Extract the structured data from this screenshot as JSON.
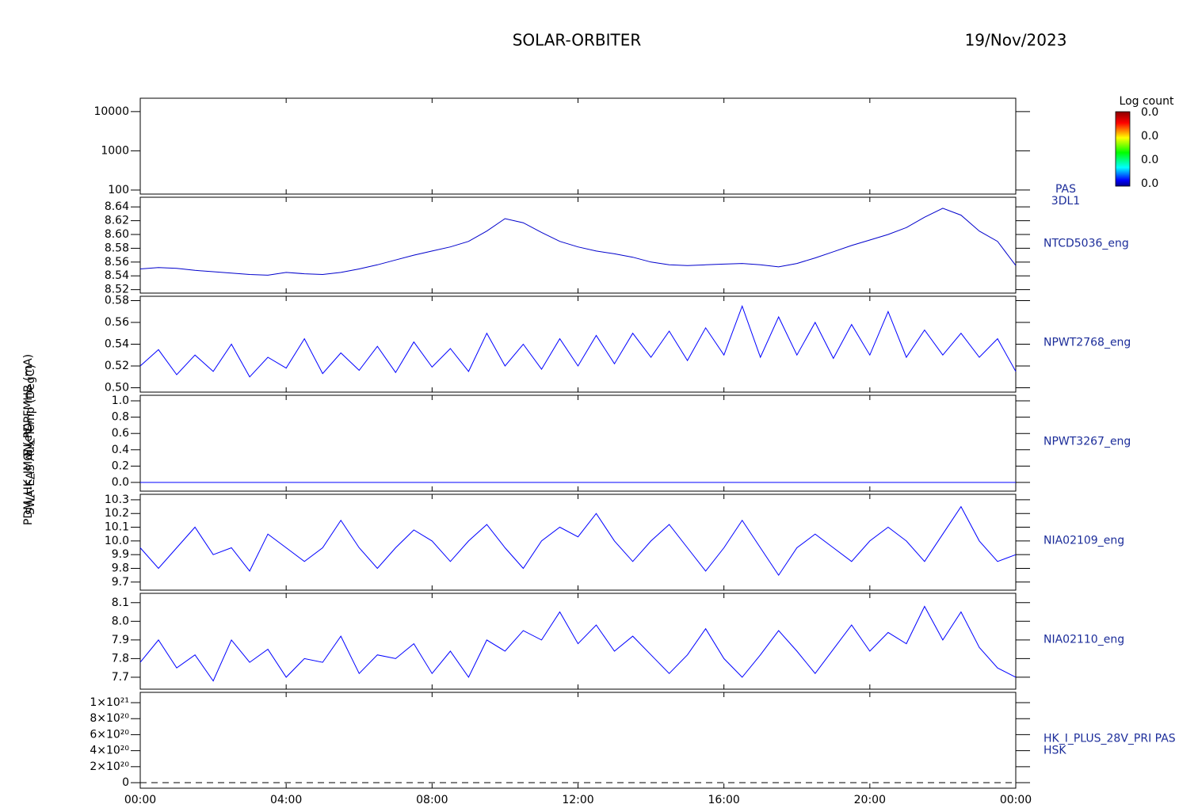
{
  "title": "SOLAR-ORBITER",
  "date": "19/Nov/2023",
  "colorbar": {
    "title": "Log count",
    "labels": [
      "0.0",
      "0.0",
      "0.0",
      "0.0"
    ]
  },
  "chart_data": [
    {
      "type": "empty",
      "log": true,
      "ylim": [
        79,
        21900
      ],
      "yticks": [
        100,
        1000,
        10000
      ],
      "xlim": [
        0,
        24
      ],
      "ylabel": "E (eV)",
      "side_labels": [
        "PAS",
        "3DL1"
      ]
    },
    {
      "type": "line",
      "color": "#0000cc",
      "xlim": [
        0,
        24
      ],
      "ylim": [
        8.515,
        8.654
      ],
      "yticks": [
        8.52,
        8.54,
        8.56,
        8.58,
        {
          "value": 8.6,
          "label": "8.60"
        },
        8.62,
        8.64
      ],
      "ylabel": "SWA-EAS Aux Temp (DegC)",
      "side_labels": [
        "NTCD5036_eng"
      ],
      "x": [
        0,
        0.5,
        1,
        1.5,
        2,
        2.5,
        3,
        3.5,
        4,
        4.5,
        5,
        5.5,
        6,
        6.5,
        7,
        7.5,
        8,
        8.5,
        9,
        9.5,
        10,
        10.5,
        11,
        11.5,
        12,
        12.5,
        13,
        13.5,
        14,
        14.5,
        15,
        15.5,
        16,
        16.5,
        17,
        17.5,
        18,
        18.5,
        19,
        19.5,
        20,
        20.5,
        21,
        21.5,
        22,
        22.5,
        23,
        23.5,
        24
      ],
      "values": [
        8.55,
        8.552,
        8.551,
        8.548,
        8.546,
        8.544,
        8.542,
        8.541,
        8.545,
        8.543,
        8.542,
        8.545,
        8.55,
        8.556,
        8.563,
        8.57,
        8.576,
        8.582,
        8.59,
        8.605,
        8.623,
        8.617,
        8.603,
        8.59,
        8.582,
        8.576,
        8.572,
        8.567,
        8.56,
        8.556,
        8.555,
        8.556,
        8.557,
        8.558,
        8.556,
        8.553,
        8.558,
        8.566,
        8.575,
        8.584,
        8.592,
        8.6,
        8.61,
        8.625,
        8.638,
        8.628,
        8.605,
        8.59,
        8.555
      ]
    },
    {
      "type": "line",
      "color": "#0000ff",
      "xlim": [
        0,
        24
      ],
      "ylim": [
        0.496,
        0.584
      ],
      "yticks": [
        {
          "value": 0.5,
          "label": "0.50"
        },
        0.52,
        0.54,
        0.56,
        0.58
      ],
      "side_labels": [
        "NPWT2768_eng"
      ],
      "x": [
        0,
        0.5,
        1,
        1.5,
        2,
        2.5,
        3,
        3.5,
        4,
        4.5,
        5,
        5.5,
        6,
        6.5,
        7,
        7.5,
        8,
        8.5,
        9,
        9.5,
        10,
        10.5,
        11,
        11.5,
        12,
        12.5,
        13,
        13.5,
        14,
        14.5,
        15,
        15.5,
        16,
        16.5,
        17,
        17.5,
        18,
        18.5,
        19,
        19.5,
        20,
        20.5,
        21,
        21.5,
        22,
        22.5,
        23,
        23.5,
        24
      ],
      "values": [
        0.52,
        0.535,
        0.512,
        0.53,
        0.515,
        0.54,
        0.51,
        0.528,
        0.518,
        0.545,
        0.513,
        0.532,
        0.516,
        0.538,
        0.514,
        0.542,
        0.519,
        0.536,
        0.515,
        0.55,
        0.52,
        0.54,
        0.517,
        0.545,
        0.52,
        0.548,
        0.522,
        0.55,
        0.528,
        0.552,
        0.525,
        0.555,
        0.53,
        0.575,
        0.528,
        0.565,
        0.53,
        0.56,
        0.527,
        0.558,
        0.53,
        0.57,
        0.528,
        0.553,
        0.53,
        0.55,
        0.528,
        0.545,
        0.515
      ]
    },
    {
      "type": "line",
      "color": "#0000ff",
      "xlim": [
        0,
        24
      ],
      "ylim": [
        -0.107,
        1.068
      ],
      "yticks": [
        {
          "value": 0,
          "label": "0.0"
        },
        0.2,
        0.4,
        0.6,
        0.8,
        {
          "value": 1,
          "label": "1.0"
        }
      ],
      "side_labels": [
        "NPWT3267_eng"
      ],
      "x": [
        0,
        24
      ],
      "values": [
        0,
        0
      ]
    },
    {
      "type": "line",
      "color": "#0000ff",
      "xlim": [
        0,
        24
      ],
      "ylim": [
        9.641,
        10.34
      ],
      "yticks": [
        9.7,
        9.8,
        9.9,
        {
          "value": 10,
          "label": "10.0"
        },
        10.1,
        10.2,
        10.3
      ],
      "side_labels": [
        "NIA02109_eng"
      ],
      "x": [
        0,
        0.5,
        1,
        1.5,
        2,
        2.5,
        3,
        3.5,
        4,
        4.5,
        5,
        5.5,
        6,
        6.5,
        7,
        7.5,
        8,
        8.5,
        9,
        9.5,
        10,
        10.5,
        11,
        11.5,
        12,
        12.5,
        13,
        13.5,
        14,
        14.5,
        15,
        15.5,
        16,
        16.5,
        17,
        17.5,
        18,
        18.5,
        19,
        19.5,
        20,
        20.5,
        21,
        21.5,
        22,
        22.5,
        23,
        23.5,
        24
      ],
      "values": [
        9.95,
        9.8,
        9.95,
        10.1,
        9.9,
        9.95,
        9.78,
        10.05,
        9.95,
        9.85,
        9.95,
        10.15,
        9.95,
        9.8,
        9.95,
        10.08,
        10.0,
        9.85,
        10.0,
        10.12,
        9.95,
        9.8,
        10.0,
        10.1,
        10.03,
        10.2,
        10.0,
        9.85,
        10.0,
        10.12,
        9.95,
        9.78,
        9.95,
        10.15,
        9.95,
        9.75,
        9.95,
        10.05,
        9.95,
        9.85,
        10.0,
        10.1,
        10.0,
        9.85,
        10.05,
        10.25,
        10.0,
        9.85,
        9.9
      ]
    },
    {
      "type": "line",
      "color": "#0000ff",
      "xlim": [
        0,
        24
      ],
      "ylim": [
        7.636,
        8.15
      ],
      "yticks": [
        7.7,
        7.8,
        7.9,
        {
          "value": 8,
          "label": "8.0"
        },
        8.1
      ],
      "side_labels": [
        "NIA02110_eng"
      ],
      "x": [
        0,
        0.5,
        1,
        1.5,
        2,
        2.5,
        3,
        3.5,
        4,
        4.5,
        5,
        5.5,
        6,
        6.5,
        7,
        7.5,
        8,
        8.5,
        9,
        9.5,
        10,
        10.5,
        11,
        11.5,
        12,
        12.5,
        13,
        13.5,
        14,
        14.5,
        15,
        15.5,
        16,
        16.5,
        17,
        17.5,
        18,
        18.5,
        19,
        19.5,
        20,
        20.5,
        21,
        21.5,
        22,
        22.5,
        23,
        23.5,
        24
      ],
      "values": [
        7.78,
        7.9,
        7.75,
        7.82,
        7.68,
        7.9,
        7.78,
        7.85,
        7.7,
        7.8,
        7.78,
        7.92,
        7.72,
        7.82,
        7.8,
        7.88,
        7.72,
        7.84,
        7.7,
        7.9,
        7.84,
        7.95,
        7.9,
        8.05,
        7.88,
        7.98,
        7.84,
        7.92,
        7.82,
        7.72,
        7.82,
        7.96,
        7.8,
        7.7,
        7.82,
        7.95,
        7.84,
        7.72,
        7.85,
        7.98,
        7.84,
        7.94,
        7.88,
        8.08,
        7.9,
        8.05,
        7.86,
        7.75,
        7.7
      ]
    },
    {
      "type": "line",
      "color": "#000000",
      "dashed": true,
      "xlim": [
        0,
        24
      ],
      "ylim": [
        -6.9e+19,
        1.129e+21
      ],
      "yticks": [
        0,
        {
          "value": 2e+20,
          "label": "2×10²⁰"
        },
        {
          "value": 4e+20,
          "label": "4×10²⁰"
        },
        {
          "value": 6e+20,
          "label": "6×10²⁰"
        },
        {
          "value": 8e+20,
          "label": "8×10²⁰"
        },
        {
          "value": 1e+21,
          "label": "1×10²¹"
        }
      ],
      "ylabel": "PDM_HK_IMON_PDPFMHB (mA)",
      "side_labels": [
        "HK_I_PLUS_28V_PRI PAS",
        "HSK"
      ],
      "x": [
        0,
        24
      ],
      "values": [
        0,
        0
      ],
      "xticks": [
        {
          "value": 0,
          "label": "00:00"
        },
        {
          "value": 4,
          "label": "04:00"
        },
        {
          "value": 8,
          "label": "08:00"
        },
        {
          "value": 12,
          "label": "12:00"
        },
        {
          "value": 16,
          "label": "16:00"
        },
        {
          "value": 20,
          "label": "20:00"
        },
        {
          "value": 24,
          "label": "00:00"
        }
      ]
    }
  ]
}
